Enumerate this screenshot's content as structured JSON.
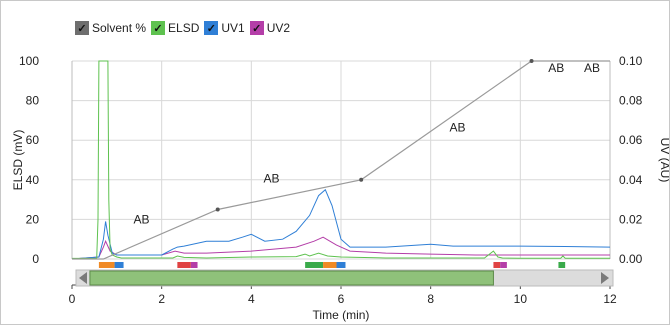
{
  "legend": [
    {
      "label": "Solvent %",
      "color": "#6e6e6e",
      "check": "✓"
    },
    {
      "label": "ELSD",
      "color": "#5ec24f",
      "check": "✓"
    },
    {
      "label": "UV1",
      "color": "#2f7fd6",
      "check": "✓"
    },
    {
      "label": "UV2",
      "color": "#b43ea8",
      "check": "✓"
    }
  ],
  "chart_data": {
    "type": "line",
    "xlabel": "Time (min)",
    "ylabel_left": "ELSD (mV)",
    "ylabel_right": "UV (AU)",
    "xlim": [
      0,
      12
    ],
    "ylim_left": [
      0,
      100
    ],
    "ylim_right": [
      0,
      0.1
    ],
    "x_ticks": [
      "0",
      "2",
      "4",
      "6",
      "8",
      "10",
      "12"
    ],
    "y_ticks_left": [
      "0",
      "20",
      "40",
      "60",
      "80",
      "100"
    ],
    "y_ticks_right": [
      "0.00",
      "0.02",
      "0.04",
      "0.06",
      "0.08",
      "0.10"
    ],
    "grid": true,
    "series": [
      {
        "name": "Solvent %",
        "color": "#9a9a9a",
        "axis": "left",
        "x": [
          0,
          0.7,
          3.25,
          6.45,
          10.25,
          12
        ],
        "y": [
          0,
          0,
          25,
          40,
          100,
          100
        ],
        "markers": [
          3.25,
          6.45,
          10.25
        ]
      },
      {
        "name": "ELSD",
        "color": "#5ec24f",
        "axis": "left",
        "x": [
          0,
          0.55,
          0.58,
          0.6,
          0.65,
          0.8,
          0.82,
          0.85,
          0.9,
          1.0,
          1.1,
          2.25,
          2.35,
          2.5,
          3.0,
          4.0,
          5.0,
          5.2,
          5.3,
          5.5,
          5.7,
          6.0,
          7.0,
          9.2,
          9.4,
          9.5,
          9.6,
          10.0,
          10.9,
          10.95,
          11.0,
          12.0
        ],
        "y": [
          0.3,
          0.3,
          20,
          100,
          100,
          100,
          30,
          5,
          2,
          1,
          0.5,
          0.5,
          1.5,
          0.8,
          0.5,
          1,
          1.2,
          2.5,
          1.5,
          3,
          1.5,
          1,
          0.5,
          0.5,
          4,
          1,
          0.5,
          0.4,
          0.4,
          1.5,
          0.4,
          0.4
        ]
      },
      {
        "name": "UV1",
        "color": "#2f7fd6",
        "axis": "right",
        "x": [
          0,
          0.6,
          0.7,
          0.75,
          0.8,
          0.9,
          1.0,
          2.0,
          2.25,
          2.35,
          2.5,
          3.0,
          3.5,
          3.8,
          4.0,
          4.3,
          4.7,
          5.0,
          5.3,
          5.5,
          5.65,
          5.8,
          6.0,
          6.2,
          7.0,
          8.0,
          8.5,
          9.0,
          10.0,
          11.0,
          12.0
        ],
        "y": [
          0.0,
          0.001,
          0.01,
          0.019,
          0.012,
          0.003,
          0.002,
          0.002,
          0.005,
          0.006,
          0.0065,
          0.009,
          0.009,
          0.011,
          0.0125,
          0.009,
          0.01,
          0.014,
          0.022,
          0.032,
          0.035,
          0.027,
          0.01,
          0.006,
          0.006,
          0.0075,
          0.0065,
          0.0065,
          0.0065,
          0.0063,
          0.006
        ]
      },
      {
        "name": "UV2",
        "color": "#b43ea8",
        "axis": "right",
        "x": [
          0,
          0.6,
          0.7,
          0.75,
          0.85,
          1.0,
          2.0,
          2.3,
          2.5,
          3.0,
          4.0,
          5.0,
          5.4,
          5.6,
          5.9,
          6.2,
          7.0,
          8.0,
          9.0,
          10.0,
          11.0,
          12.0
        ],
        "y": [
          0.0,
          0.001,
          0.006,
          0.009,
          0.004,
          0.002,
          0.002,
          0.004,
          0.003,
          0.003,
          0.004,
          0.006,
          0.009,
          0.011,
          0.007,
          0.004,
          0.003,
          0.0025,
          0.002,
          0.002,
          0.002,
          0.002
        ]
      }
    ],
    "annotations": [
      {
        "text": "AB",
        "x": 1.55,
        "y": 32
      },
      {
        "text": "AB",
        "x": 4.45,
        "y": 73
      },
      {
        "text": "AB",
        "x": 8.6,
        "y": 125
      },
      {
        "text": "AB",
        "x": 10.8,
        "y": 185
      },
      {
        "text": "AB",
        "x": 11.6,
        "y": 185
      }
    ],
    "fractions": [
      {
        "x0": 0.6,
        "x1": 0.95,
        "color": "#f08a25"
      },
      {
        "x0": 0.95,
        "x1": 1.15,
        "color": "#2f7fd6"
      },
      {
        "x0": 2.35,
        "x1": 2.65,
        "color": "#e04343"
      },
      {
        "x0": 2.65,
        "x1": 2.8,
        "color": "#b43ea8"
      },
      {
        "x0": 5.2,
        "x1": 5.6,
        "color": "#3aaa4a"
      },
      {
        "x0": 5.6,
        "x1": 5.9,
        "color": "#f08a25"
      },
      {
        "x0": 5.9,
        "x1": 6.1,
        "color": "#2f7fd6"
      },
      {
        "x0": 9.4,
        "x1": 9.55,
        "color": "#e04343"
      },
      {
        "x0": 9.55,
        "x1": 9.7,
        "color": "#b43ea8"
      },
      {
        "x0": 10.85,
        "x1": 11.0,
        "color": "#3aaa4a"
      }
    ],
    "scroll_range": [
      0.4,
      9.4
    ]
  }
}
